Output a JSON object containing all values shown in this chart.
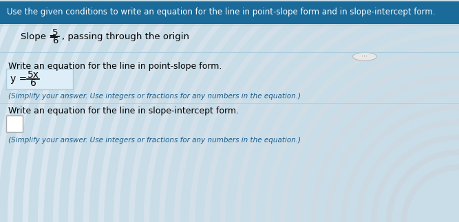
{
  "title_text": "Use the given conditions to write an equation for the line in point-slope form and in slope-intercept form.",
  "slope_label": "Slope = ",
  "slope_numerator": "5",
  "slope_denominator": "6",
  "slope_suffix": ", passing through the origin",
  "section1_label": "Write an equation for the line in point-slope form.",
  "answer1_prefix": "y = ",
  "answer1_numerator": "5x",
  "answer1_denominator": "6",
  "simplify1": "(Simplify your answer. Use integers or fractions for any numbers in the equation.)",
  "section2_label": "Write an equation for the line in slope-intercept form.",
  "simplify2": "(Simplify your answer. Use integers or fractions for any numbers in the equation.)",
  "bg_top_color": "#d0e8f0",
  "bg_wave_color": "#c8e0ec",
  "bg_bottom_color": "#c8dde8",
  "header_bg": "#2c7bb6",
  "answer_box_color": "#d8eaf5",
  "text_color_dark": "#000000",
  "text_color_blue": "#1a5c8a",
  "text_color_header": "#ffffff",
  "dots_color": "#888888",
  "fig_width": 6.67,
  "fig_height": 3.23,
  "dpi": 100
}
